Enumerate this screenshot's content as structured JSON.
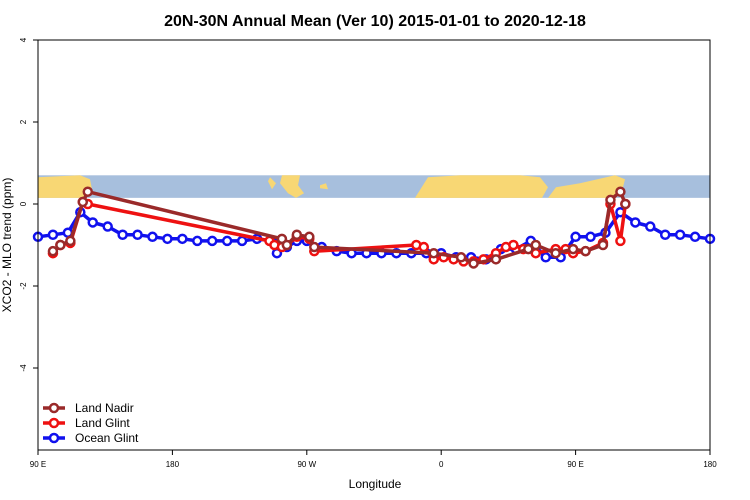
{
  "chart_data": {
    "type": "line",
    "title": "20N-30N Annual Mean (Ver 10)   2015-01-01 to 2020-12-18",
    "xlabel": "Longitude",
    "ylabel": "XCO2 - MLO trend (ppm)",
    "xlim": [
      -90,
      180
    ],
    "ylim": [
      -6,
      4
    ],
    "x_ticks": [
      {
        "value": -90,
        "label": "90 E"
      },
      {
        "value": -36,
        "label": "180"
      },
      {
        "value": 18,
        "label": "90 W"
      },
      {
        "value": 72,
        "label": "0"
      },
      {
        "value": 126,
        "label": "90 E"
      },
      {
        "value": 180,
        "label": "180"
      }
    ],
    "y_ticks": [
      {
        "value": 4,
        "label": "4"
      },
      {
        "value": 2,
        "label": "2"
      },
      {
        "value": 0,
        "label": "0"
      },
      {
        "value": -2,
        "label": "-2"
      },
      {
        "value": -4,
        "label": "-4"
      }
    ],
    "grid": false,
    "legend_position": "bottom-left",
    "map_band": {
      "y_top": 0.7,
      "y_bottom": 0.15,
      "ocean_color": "#a7bfdd",
      "land_color": "#f8d774"
    },
    "series": [
      {
        "name": "Land Nadir",
        "color": "#9a2a2a",
        "x": [
          -84,
          -81,
          -77,
          -72,
          -70,
          8,
          10,
          14,
          19,
          21,
          69,
          80,
          85,
          94,
          107,
          110,
          118,
          125,
          130,
          137,
          140,
          144,
          146
        ],
        "y": [
          -1.15,
          -1.0,
          -0.9,
          0.05,
          0.3,
          -0.85,
          -1.0,
          -0.75,
          -0.8,
          -1.05,
          -1.2,
          -1.3,
          -1.45,
          -1.35,
          -1.1,
          -1.0,
          -1.2,
          -1.1,
          -1.15,
          -1.0,
          0.1,
          0.3,
          0.0
        ]
      },
      {
        "name": "Land Glint",
        "color": "#ee1111",
        "x": [
          -84,
          -81,
          -77,
          -72,
          -70,
          3,
          5,
          8,
          10,
          14,
          19,
          21,
          62,
          65,
          69,
          73,
          77,
          81,
          85,
          89,
          94,
          98,
          101,
          105,
          110,
          118,
          122,
          125,
          130,
          137,
          140,
          144,
          146
        ],
        "y": [
          -1.2,
          -1.0,
          -0.95,
          0.05,
          0.0,
          -0.9,
          -1.0,
          -1.05,
          -1.0,
          -0.8,
          -0.85,
          -1.15,
          -1.0,
          -1.05,
          -1.35,
          -1.3,
          -1.35,
          -1.4,
          -1.4,
          -1.35,
          -1.2,
          -1.05,
          -1.0,
          -1.1,
          -1.2,
          -1.1,
          -1.1,
          -1.2,
          -1.15,
          -0.95,
          0.0,
          -0.9,
          0.0
        ]
      },
      {
        "name": "Ocean Glint",
        "color": "#1111ee",
        "x": [
          -90,
          -84,
          -78,
          -73,
          -68,
          -62,
          -56,
          -50,
          -44,
          -38,
          -32,
          -26,
          -20,
          -14,
          -8,
          -2,
          4,
          6,
          10,
          14,
          18,
          24,
          30,
          36,
          42,
          48,
          54,
          60,
          66,
          72,
          78,
          84,
          90,
          96,
          102,
          108,
          114,
          120,
          126,
          132,
          138,
          144,
          150,
          156,
          162,
          168,
          174,
          180
        ],
        "y": [
          -0.8,
          -0.75,
          -0.7,
          -0.2,
          -0.45,
          -0.55,
          -0.75,
          -0.75,
          -0.8,
          -0.85,
          -0.85,
          -0.9,
          -0.9,
          -0.9,
          -0.9,
          -0.85,
          -0.9,
          -1.2,
          -1.05,
          -0.9,
          -0.9,
          -1.05,
          -1.15,
          -1.2,
          -1.2,
          -1.2,
          -1.2,
          -1.2,
          -1.2,
          -1.2,
          -1.3,
          -1.3,
          -1.35,
          -1.1,
          -1.1,
          -0.9,
          -1.3,
          -1.3,
          -0.8,
          -0.8,
          -0.7,
          -0.2,
          -0.45,
          -0.55,
          -0.75,
          -0.75,
          -0.8,
          -0.85
        ]
      }
    ]
  }
}
